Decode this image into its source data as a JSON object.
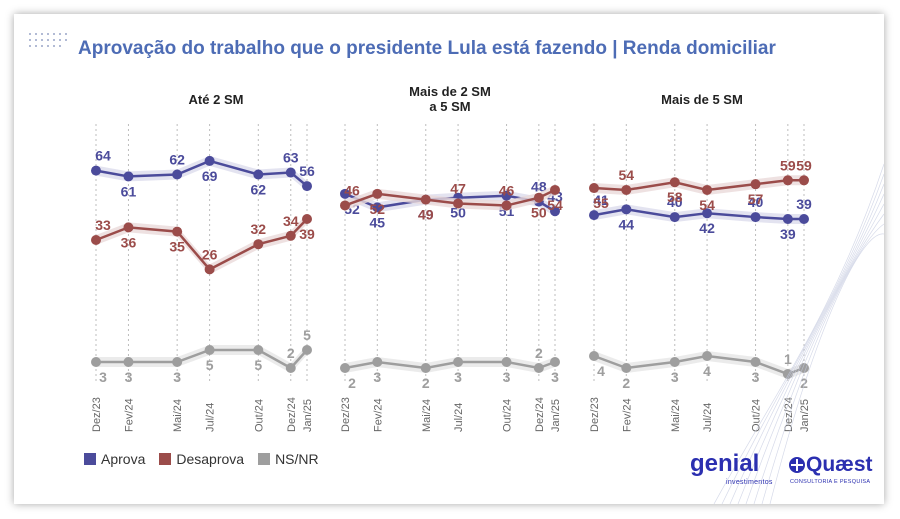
{
  "title": "Aprovação do trabalho que o presidente Lula está fazendo | Renda domiciliar",
  "colors": {
    "aprova": "#4b4b9b",
    "desaprova": "#9b4c4a",
    "ns": "#9e9e9e",
    "title": "#4d6cb5"
  },
  "legend": [
    {
      "label": "Aprova",
      "color": "#4b4b9b"
    },
    {
      "label": "Desaprova",
      "color": "#9b4c4a"
    },
    {
      "label": "NS/NR",
      "color": "#9e9e9e"
    }
  ],
  "logos": {
    "genial": "genial",
    "genial_sub": "investimentos",
    "quaest": "Quæst",
    "quaest_sub": "CONSULTORIA E PESQUISA"
  },
  "chart_data": [
    {
      "type": "line",
      "title": "Até 2 SM",
      "x": [
        "Dez/23",
        "Fev/24",
        "Mai/24",
        "Jul/24",
        "Out/24",
        "Dez/24",
        "Jan/25"
      ],
      "ylim": [
        0,
        75
      ],
      "series": [
        {
          "name": "Aprova",
          "values": [
            64,
            61,
            62,
            69,
            62,
            63,
            56
          ],
          "labels": [
            "64",
            "61",
            "62",
            "69",
            "62",
            "63",
            "56"
          ]
        },
        {
          "name": "Desaprova",
          "values": [
            33,
            36,
            35,
            26,
            32,
            34,
            39
          ],
          "labels": [
            "33",
            "36",
            "35",
            "26",
            "32",
            "34",
            "39"
          ]
        },
        {
          "name": "NS/NR",
          "values": [
            3,
            3,
            3,
            5,
            5,
            2,
            5
          ],
          "labels": [
            "3",
            "3",
            "3",
            "5",
            "5",
            "2",
            "5"
          ]
        }
      ]
    },
    {
      "type": "line",
      "title": "Mais de 2 SM\na 5 SM",
      "x": [
        "Dez/23",
        "Fev/24",
        "Mai/24",
        "Jul/24",
        "Out/24",
        "Dez/24",
        "Jan/25"
      ],
      "ylim": [
        0,
        75
      ],
      "series": [
        {
          "name": "Aprova",
          "values": [
            52,
            45,
            49,
            50,
            51,
            48,
            43
          ],
          "labels": [
            "52",
            "45",
            "49",
            "50",
            "51",
            "48",
            "43"
          ]
        },
        {
          "name": "Desaprova",
          "values": [
            46,
            52,
            49,
            47,
            46,
            50,
            54
          ],
          "labels": [
            "46",
            "52",
            "49",
            "47",
            "46",
            "50",
            "54"
          ]
        },
        {
          "name": "NS/NR",
          "values": [
            2,
            3,
            2,
            3,
            3,
            2,
            3
          ],
          "labels": [
            "2",
            "3",
            "2",
            "3",
            "3",
            "2",
            "3"
          ]
        }
      ]
    },
    {
      "type": "line",
      "title": "Mais de 5 SM",
      "x": [
        "Dez/23",
        "Fev/24",
        "Mai/24",
        "Jul/24",
        "Out/24",
        "Dez/24",
        "Jan/25"
      ],
      "ylim": [
        0,
        75
      ],
      "series": [
        {
          "name": "Aprova",
          "values": [
            41,
            44,
            40,
            42,
            40,
            39,
            39
          ],
          "labels": [
            "41",
            "44",
            "40",
            "42",
            "40",
            "39",
            "39"
          ]
        },
        {
          "name": "Desaprova",
          "values": [
            55,
            54,
            58,
            54,
            57,
            59,
            59
          ],
          "labels": [
            "55",
            "54",
            "58",
            "54",
            "57",
            "59",
            "59"
          ]
        },
        {
          "name": "NS/NR",
          "values": [
            4,
            2,
            3,
            4,
            3,
            1,
            2
          ],
          "labels": [
            "4",
            "2",
            "3",
            "4",
            "3",
            "1",
            "2"
          ]
        }
      ]
    }
  ]
}
